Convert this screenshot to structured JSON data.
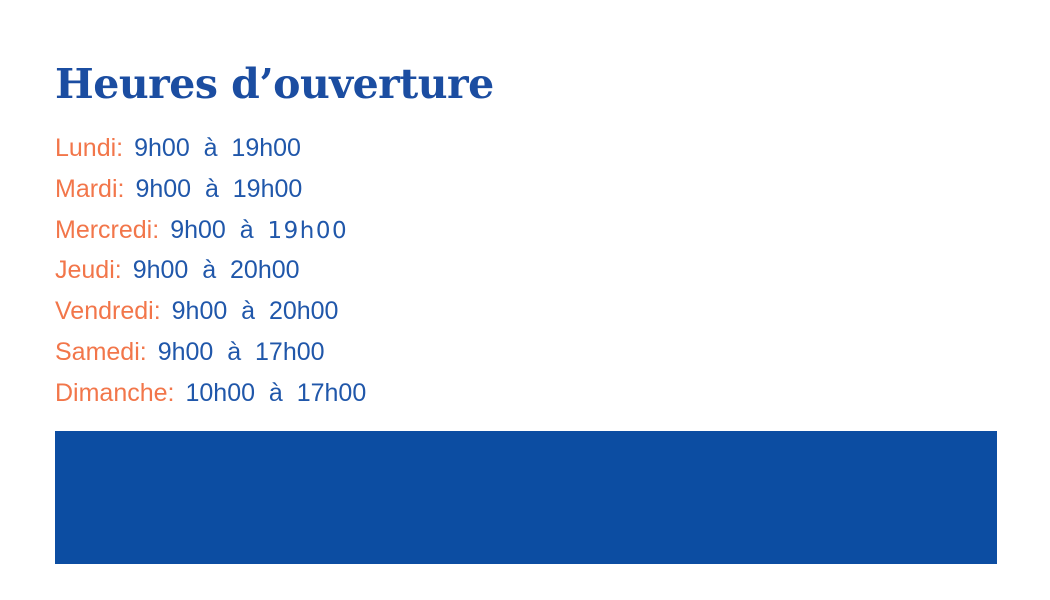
{
  "colors": {
    "title_blue": "#1b4da1",
    "day_orange": "#f2764a",
    "time_blue": "#2057aa",
    "banner_blue": "#0c4da2"
  },
  "hours": {
    "title": "Heures d’ouverture",
    "days": [
      {
        "label": "Lundi:",
        "time": "9h00  à  19h00",
        "time_alt": ""
      },
      {
        "label": "Mardi:",
        "time": "9h00  à  19h00",
        "time_alt": ""
      },
      {
        "label": "Mercredi:",
        "time": "9h00  à  ",
        "time_alt": "19h00"
      },
      {
        "label": "Jeudi:",
        "time": "9h00  à  20h00",
        "time_alt": ""
      },
      {
        "label": "Vendredi:",
        "time": "9h00  à  20h00",
        "time_alt": ""
      },
      {
        "label": "Samedi:",
        "time": "9h00  à  17h00",
        "time_alt": ""
      },
      {
        "label": "Dimanche:",
        "time": "10h00  à  17h00",
        "time_alt": ""
      }
    ]
  }
}
